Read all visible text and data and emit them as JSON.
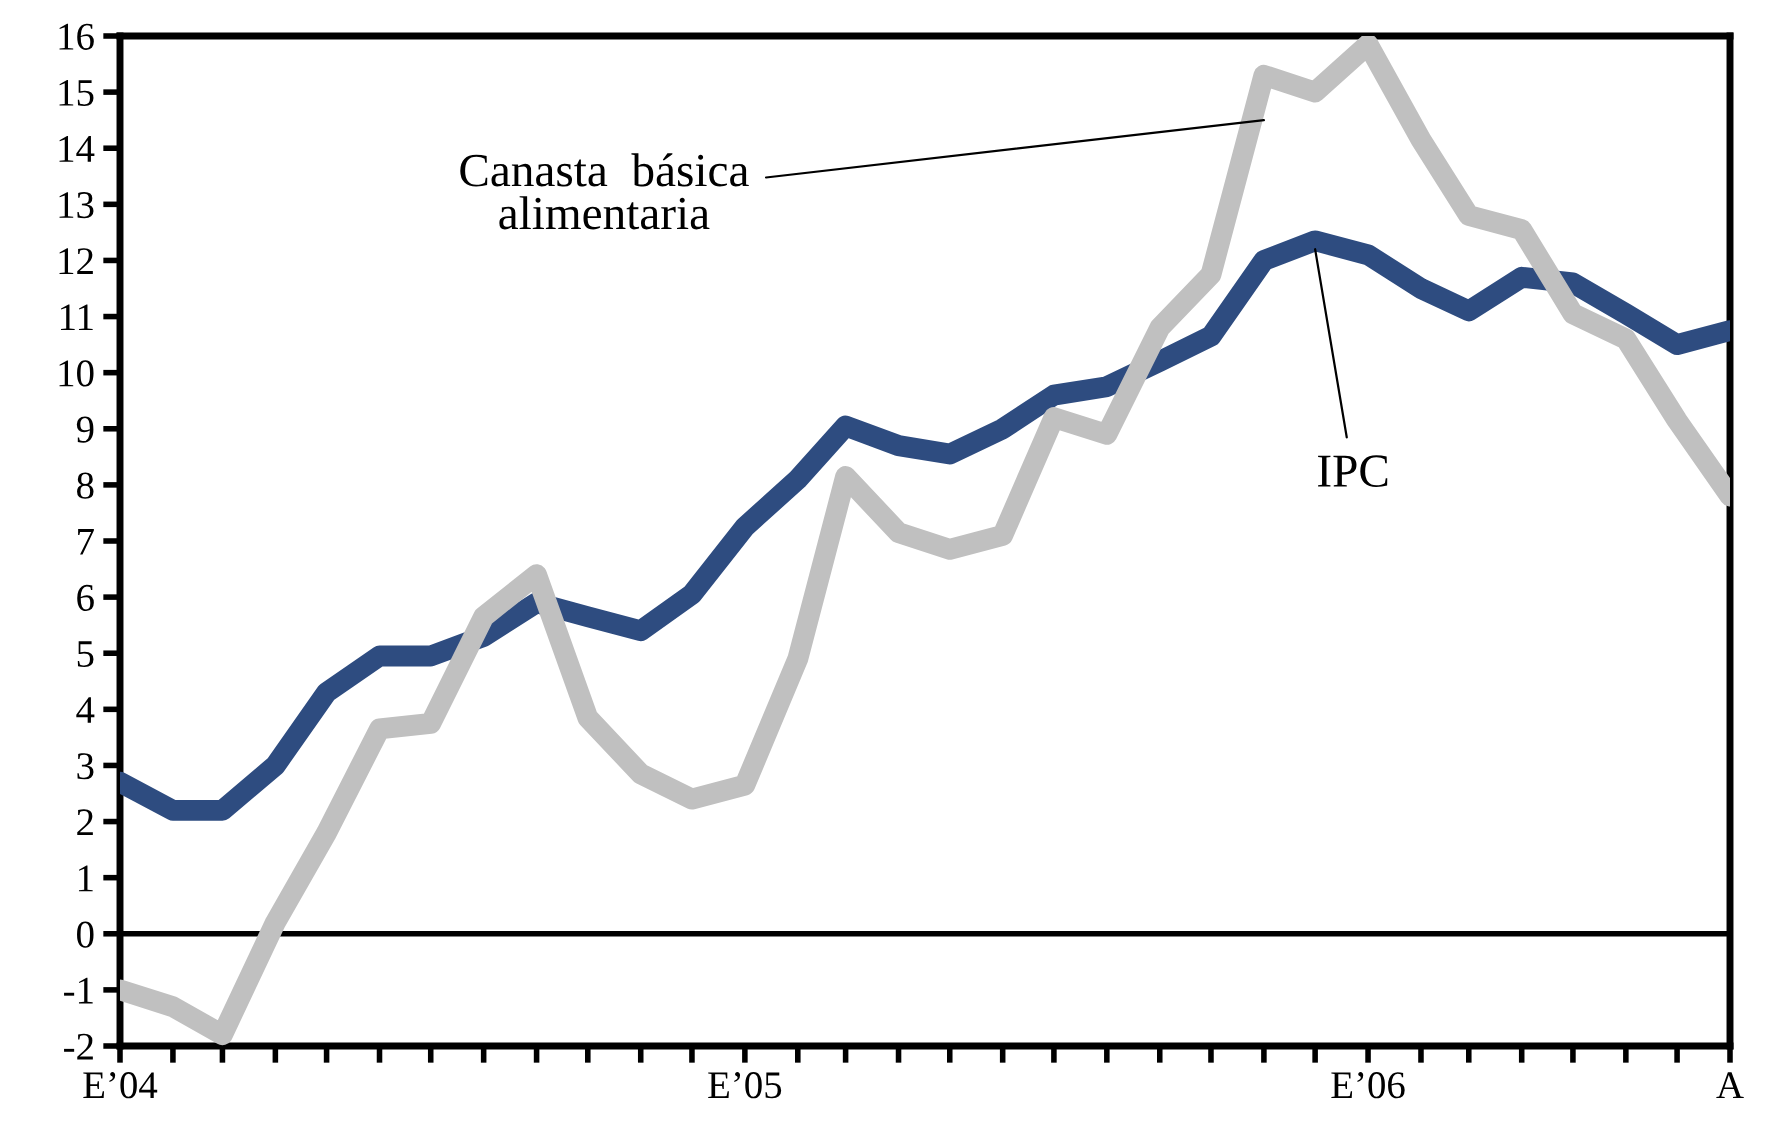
{
  "chart_data": {
    "type": "line",
    "x": [
      "2004-01",
      "2004-02",
      "2004-03",
      "2004-04",
      "2004-05",
      "2004-06",
      "2004-07",
      "2004-08",
      "2004-09",
      "2004-10",
      "2004-11",
      "2004-12",
      "2005-01",
      "2005-02",
      "2005-03",
      "2005-04",
      "2005-05",
      "2005-06",
      "2005-07",
      "2005-08",
      "2005-09",
      "2005-10",
      "2005-11",
      "2005-12",
      "2006-01",
      "2006-02",
      "2006-03",
      "2006-04",
      "2006-05",
      "2006-06",
      "2006-07",
      "2006-08"
    ],
    "series": [
      {
        "color": "#2e4c80",
        "values": [
          2.7,
          2.2,
          2.2,
          3.0,
          4.3,
          4.95,
          4.95,
          5.3,
          5.9,
          5.65,
          5.4,
          6.05,
          7.25,
          8.1,
          9.05,
          8.7,
          8.55,
          9.0,
          9.6,
          9.75,
          10.2,
          10.65,
          12.0,
          12.35,
          12.1,
          11.5,
          11.1,
          11.7,
          11.6,
          11.05,
          10.5,
          10.75
        ]
      },
      {
        "color": "#c0c0c0",
        "values": [
          -1.0,
          -1.3,
          -1.8,
          0.2,
          1.8,
          3.65,
          3.75,
          5.65,
          6.4,
          3.85,
          2.85,
          2.4,
          2.65,
          4.9,
          8.15,
          7.15,
          6.85,
          7.1,
          9.2,
          8.9,
          10.8,
          11.75,
          15.3,
          15.0,
          15.85,
          14.15,
          12.8,
          12.55,
          11.05,
          10.6,
          9.15,
          7.8
        ]
      }
    ],
    "xlim": [
      "2004-01",
      "2006-08"
    ],
    "xticks": [
      {
        "value": "2004-01",
        "label": "E’04"
      },
      {
        "value": "2004-02",
        "label": null
      },
      {
        "value": "2004-03",
        "label": null
      },
      {
        "value": "2004-04",
        "label": null
      },
      {
        "value": "2004-05",
        "label": null
      },
      {
        "value": "2004-06",
        "label": null
      },
      {
        "value": "2004-07",
        "label": null
      },
      {
        "value": "2004-08",
        "label": null
      },
      {
        "value": "2004-09",
        "label": null
      },
      {
        "value": "2004-10",
        "label": null
      },
      {
        "value": "2004-11",
        "label": null
      },
      {
        "value": "2004-12",
        "label": null
      },
      {
        "value": "2005-01",
        "label": "E’05"
      },
      {
        "value": "2005-02",
        "label": null
      },
      {
        "value": "2005-03",
        "label": null
      },
      {
        "value": "2005-04",
        "label": null
      },
      {
        "value": "2005-05",
        "label": null
      },
      {
        "value": "2005-06",
        "label": null
      },
      {
        "value": "2005-07",
        "label": null
      },
      {
        "value": "2005-08",
        "label": null
      },
      {
        "value": "2005-09",
        "label": null
      },
      {
        "value": "2005-10",
        "label": null
      },
      {
        "value": "2005-11",
        "label": null
      },
      {
        "value": "2005-12",
        "label": null
      },
      {
        "value": "2006-01",
        "label": "E’06"
      },
      {
        "value": "2006-02",
        "label": null
      },
      {
        "value": "2006-03",
        "label": null
      },
      {
        "value": "2006-04",
        "label": null
      },
      {
        "value": "2006-05",
        "label": null
      },
      {
        "value": "2006-06",
        "label": null
      },
      {
        "value": "2006-07",
        "label": null
      },
      {
        "value": "2006-08",
        "label": "A"
      }
    ],
    "ylim": [
      -2,
      16
    ],
    "yticks": [
      -2,
      -1,
      0,
      1,
      2,
      3,
      4,
      5,
      6,
      7,
      8,
      9,
      10,
      11,
      12,
      13,
      14,
      15,
      16
    ],
    "ref_lines": [
      {
        "axis": "y",
        "value": 0,
        "color": "#000000"
      }
    ],
    "annotations": [
      {
        "text": "Canasta  básica\nalimentaria",
        "x": "2005-11",
        "y": 14.5
      },
      {
        "text": "IPC",
        "x": "2005-12",
        "y": 12.2
      }
    ],
    "grid": false,
    "legend": false,
    "marker": "none",
    "line_style": "solid"
  }
}
